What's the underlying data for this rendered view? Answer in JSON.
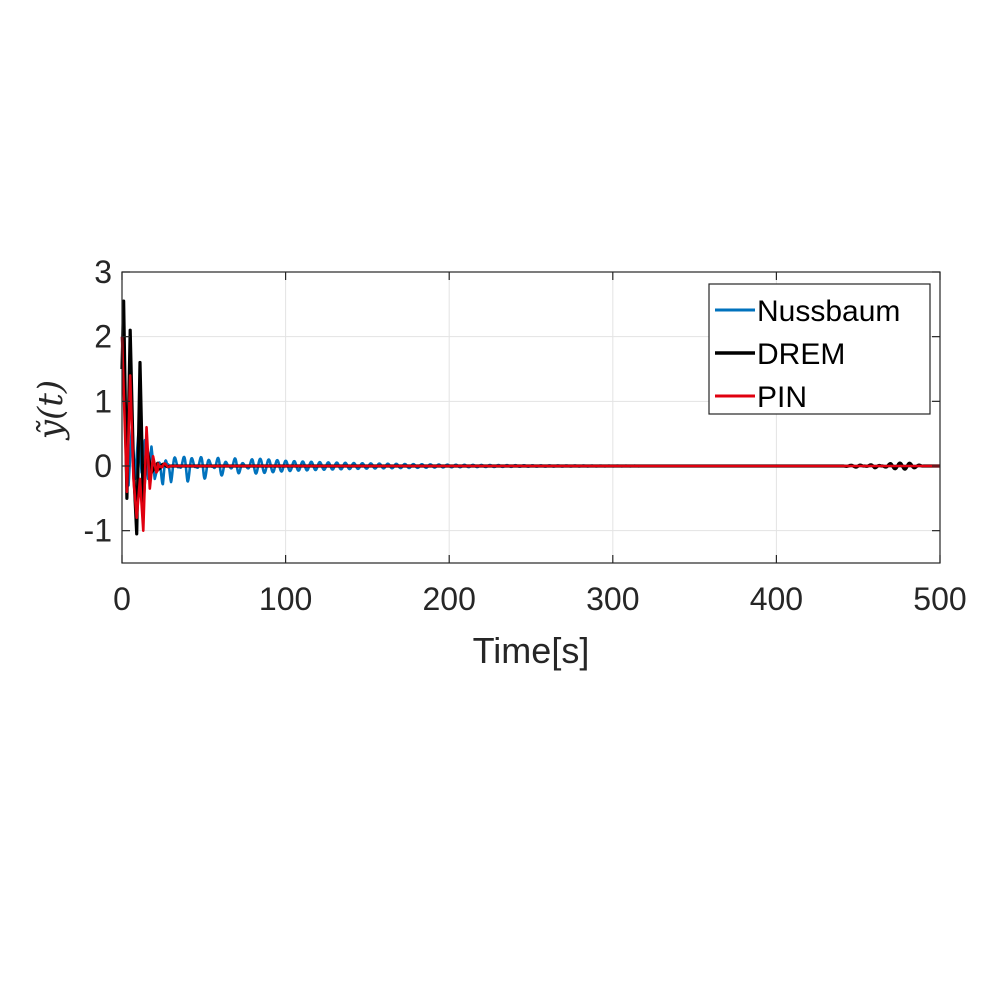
{
  "chart_data": {
    "type": "line",
    "xlabel": "Time[s]",
    "ylabel": "ỹ(t)",
    "xlim": [
      0,
      500
    ],
    "ylim": [
      -1.5,
      3
    ],
    "xticks": [
      0,
      100,
      200,
      300,
      400,
      500
    ],
    "yticks": [
      -1,
      0,
      1,
      2,
      3
    ],
    "xtick_labels": [
      "0",
      "100",
      "200",
      "300",
      "400",
      "500"
    ],
    "ytick_labels": [
      "-1",
      "0",
      "1",
      "2",
      "3"
    ],
    "grid": true,
    "legend_position": "top-right",
    "series": [
      {
        "name": "Nussbaum",
        "color": "#0072BD",
        "x": [
          0,
          2,
          4,
          6,
          8,
          10,
          12,
          14,
          16,
          18,
          20,
          25,
          30,
          40,
          50,
          60,
          70,
          80,
          100,
          120,
          150,
          200,
          250,
          300,
          400,
          500
        ],
        "y": [
          2.0,
          1.0,
          -0.3,
          0.6,
          -0.2,
          0.5,
          -0.1,
          0.4,
          -0.2,
          0.3,
          -0.2,
          0.3,
          -0.25,
          0.25,
          -0.22,
          0.18,
          -0.15,
          0.12,
          0.08,
          0.06,
          0.04,
          0.02,
          0.01,
          0.005,
          0.0,
          0.0
        ]
      },
      {
        "name": "DREM",
        "color": "#000000",
        "x": [
          0,
          1,
          3,
          5,
          7,
          9,
          11,
          13,
          15,
          18,
          22,
          30,
          50,
          100,
          200,
          300,
          400,
          440,
          450,
          460,
          470,
          480,
          490,
          500
        ],
        "y": [
          1.5,
          2.55,
          -0.5,
          2.1,
          0.0,
          -1.05,
          1.6,
          -0.6,
          0.3,
          -0.1,
          0.05,
          0.0,
          0.0,
          0.0,
          0.0,
          0.0,
          0.0,
          0.0,
          0.02,
          -0.03,
          0.04,
          0.05,
          0.0,
          0.0
        ]
      },
      {
        "name": "PIN",
        "color": "#E0000F",
        "x": [
          0,
          1,
          3,
          5,
          7,
          9,
          11,
          13,
          15,
          17,
          19,
          21,
          25,
          30,
          40,
          100,
          200,
          300,
          400,
          500
        ],
        "y": [
          2.0,
          1.2,
          -0.4,
          1.4,
          -0.2,
          -0.8,
          -0.2,
          -1.0,
          0.6,
          -0.35,
          0.15,
          -0.1,
          0.05,
          0.0,
          0.0,
          0.0,
          0.0,
          0.0,
          0.0,
          0.0
        ]
      }
    ]
  }
}
